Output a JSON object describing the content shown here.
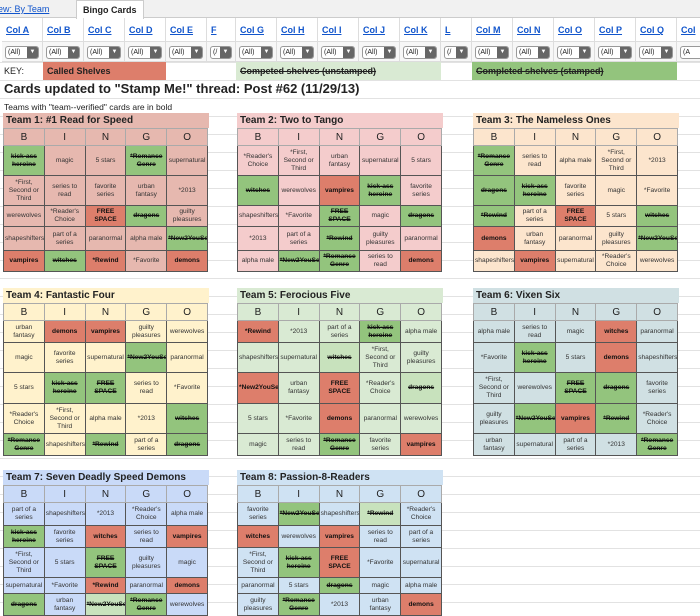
{
  "tabs": {
    "view_by_team": "ew: By Team",
    "bingo_cards": "Bingo Cards"
  },
  "columns": [
    "Col A",
    "Col B",
    "Col C",
    "Col D",
    "Col E",
    "F",
    "Col G",
    "Col H",
    "Col I",
    "Col J",
    "Col K",
    "L",
    "Col M",
    "Col N",
    "Col O",
    "Col P",
    "Col Q",
    "Col"
  ],
  "filters": [
    "(All)",
    "(All)",
    "(All)",
    "(All)",
    "(All)",
    "(/",
    "(All)",
    "(All)",
    "(All)",
    "(All)",
    "(All)",
    "(/",
    "(All)",
    "(All)",
    "(All)",
    "(All)",
    "(All)",
    "(A"
  ],
  "key": {
    "label": "KEY:",
    "called": "Called Shelves",
    "unstamped": "Competed shelves (unstamped)",
    "stamped": "Completed shelves (stamped)"
  },
  "colors": {
    "called": "#dd7e6b",
    "stamped": "#93c47d",
    "unstamped": "#d9ead3"
  },
  "title": "Cards updated to \"Stamp Me!\" thread: Post #62 (11/29/13)",
  "note": "Teams with \"team--verified\" cards are in bold",
  "bingo_letters": [
    "B",
    "I",
    "N",
    "G",
    "O"
  ],
  "teams": [
    {
      "title": "Team 1: #1 Read for Speed",
      "color": "#e6b8af",
      "rows": [
        [
          [
            "kick-ass heroine",
            "stamped"
          ],
          [
            "magic",
            ""
          ],
          [
            "5 stars",
            ""
          ],
          [
            "*Romance Genre",
            "stamped"
          ],
          [
            "supernatural",
            ""
          ]
        ],
        [
          [
            "*First, Second or Third",
            ""
          ],
          [
            "series to read",
            ""
          ],
          [
            "favorite series",
            ""
          ],
          [
            "urban fantasy",
            ""
          ],
          [
            "*2013",
            ""
          ]
        ],
        [
          [
            "werewolves",
            ""
          ],
          [
            "*Reader's Choice",
            ""
          ],
          [
            "FREE SPACE",
            "called"
          ],
          [
            "dragons",
            "stamped"
          ],
          [
            "guilty pleasures",
            ""
          ]
        ],
        [
          [
            "shapeshifters",
            ""
          ],
          [
            "part of a series",
            ""
          ],
          [
            "paranormal",
            ""
          ],
          [
            "alpha male",
            ""
          ],
          [
            "*New2YouSe",
            "stamped"
          ]
        ],
        [
          [
            "vampires",
            "called"
          ],
          [
            "witches",
            "stamped"
          ],
          [
            "*Rewind",
            "called"
          ],
          [
            "*Favorite",
            ""
          ],
          [
            "demons",
            "called"
          ]
        ]
      ]
    },
    {
      "title": "Team 2: Two to Tango",
      "color": "#f4cccc",
      "rows": [
        [
          [
            "*Reader's Choice",
            ""
          ],
          [
            "*First, Second or Third",
            ""
          ],
          [
            "urban fantasy",
            ""
          ],
          [
            "supernatural",
            ""
          ],
          [
            "5 stars",
            ""
          ]
        ],
        [
          [
            "witches",
            "stamped"
          ],
          [
            "werewolves",
            ""
          ],
          [
            "vampires",
            "called"
          ],
          [
            "kick-ass heroine",
            "stamped"
          ],
          [
            "favorite series",
            ""
          ]
        ],
        [
          [
            "shapeshifters",
            ""
          ],
          [
            "*Favorite",
            ""
          ],
          [
            "FREE SPACE",
            "stamped"
          ],
          [
            "magic",
            ""
          ],
          [
            "dragons",
            "stamped"
          ]
        ],
        [
          [
            "*2013",
            ""
          ],
          [
            "part of a series",
            ""
          ],
          [
            "*Rewind",
            "stamped"
          ],
          [
            "guilty pleasures",
            ""
          ],
          [
            "paranormal",
            ""
          ]
        ],
        [
          [
            "alpha male",
            ""
          ],
          [
            "*New2YouSe",
            "stamped"
          ],
          [
            "*Romance Genre",
            "stamped"
          ],
          [
            "series to read",
            ""
          ],
          [
            "demons",
            "called"
          ]
        ]
      ]
    },
    {
      "title": "Team 3: The Nameless Ones",
      "color": "#fce5cd",
      "rows": [
        [
          [
            "*Romance Genre",
            "stamped"
          ],
          [
            "series to read",
            ""
          ],
          [
            "alpha male",
            ""
          ],
          [
            "*First, Second or Third",
            ""
          ],
          [
            "*2013",
            ""
          ]
        ],
        [
          [
            "dragons",
            "stamped"
          ],
          [
            "kick-ass heroine",
            "stamped"
          ],
          [
            "favorite series",
            ""
          ],
          [
            "magic",
            ""
          ],
          [
            "*Favorite",
            ""
          ]
        ],
        [
          [
            "*Rewind",
            "stamped"
          ],
          [
            "part of a series",
            ""
          ],
          [
            "FREE SPACE",
            "called"
          ],
          [
            "5 stars",
            ""
          ],
          [
            "witches",
            "stamped"
          ]
        ],
        [
          [
            "demons",
            "called"
          ],
          [
            "urban fantasy",
            ""
          ],
          [
            "paranormal",
            ""
          ],
          [
            "guilty pleasures",
            ""
          ],
          [
            "*New2YouSe",
            "stamped"
          ]
        ],
        [
          [
            "shapeshifters",
            ""
          ],
          [
            "vampires",
            "called"
          ],
          [
            "supernatural",
            ""
          ],
          [
            "*Reader's Choice",
            ""
          ],
          [
            "werewolves",
            ""
          ]
        ]
      ]
    },
    {
      "title": "Team 4: Fantastic Four",
      "color": "#fff2cc",
      "rows": [
        [
          [
            "urban fantasy",
            ""
          ],
          [
            "demons",
            "called"
          ],
          [
            "vampires",
            "called"
          ],
          [
            "guilty pleasures",
            ""
          ],
          [
            "werewolves",
            ""
          ]
        ],
        [
          [
            "magic",
            ""
          ],
          [
            "favorite series",
            ""
          ],
          [
            "supernatural",
            ""
          ],
          [
            "*New2YouSe",
            "stamped"
          ],
          [
            "paranormal",
            ""
          ]
        ],
        [
          [
            "5 stars",
            ""
          ],
          [
            "kick-ass heroine",
            "stamped"
          ],
          [
            "FREE SPACE",
            "stamped"
          ],
          [
            "series to read",
            ""
          ],
          [
            "*Favorite",
            ""
          ]
        ],
        [
          [
            "*Reader's Choice",
            ""
          ],
          [
            "*First, Second or Third",
            ""
          ],
          [
            "alpha male",
            ""
          ],
          [
            "*2013",
            ""
          ],
          [
            "witches",
            "stamped"
          ]
        ],
        [
          [
            "*Romance Genre",
            "stamped"
          ],
          [
            "shapeshifters",
            ""
          ],
          [
            "*Rewind",
            "stamped"
          ],
          [
            "part of a series",
            ""
          ],
          [
            "dragons",
            "stamped"
          ]
        ]
      ]
    },
    {
      "title": "Team 5: Ferocious Five",
      "color": "#d9ead3",
      "rows": [
        [
          [
            "*Rewind",
            "called"
          ],
          [
            "*2013",
            ""
          ],
          [
            "part of a series",
            ""
          ],
          [
            "kick-ass heroine",
            "stamped"
          ],
          [
            "alpha male",
            ""
          ]
        ],
        [
          [
            "shapeshifters",
            ""
          ],
          [
            "supernatural",
            ""
          ],
          [
            "witches",
            "unstamped"
          ],
          [
            "*First, Second or Third",
            ""
          ],
          [
            "guilty pleasures",
            ""
          ]
        ],
        [
          [
            "*New2YouSe",
            "called"
          ],
          [
            "urban fantasy",
            ""
          ],
          [
            "FREE SPACE",
            "called"
          ],
          [
            "*Reader's Choice",
            ""
          ],
          [
            "dragons",
            "unstamped"
          ]
        ],
        [
          [
            "5 stars",
            ""
          ],
          [
            "*Favorite",
            ""
          ],
          [
            "demons",
            "called"
          ],
          [
            "paranormal",
            ""
          ],
          [
            "werewolves",
            ""
          ]
        ],
        [
          [
            "magic",
            ""
          ],
          [
            "series to read",
            ""
          ],
          [
            "*Romance Genre",
            "stamped"
          ],
          [
            "favorite series",
            ""
          ],
          [
            "vampires",
            "called"
          ]
        ]
      ]
    },
    {
      "title": "Team 6: Vixen Six",
      "color": "#d0e0e3",
      "rows": [
        [
          [
            "alpha male",
            ""
          ],
          [
            "series to read",
            ""
          ],
          [
            "magic",
            ""
          ],
          [
            "witches",
            "called"
          ],
          [
            "paranormal",
            ""
          ]
        ],
        [
          [
            "*Favorite",
            ""
          ],
          [
            "kick-ass heroine",
            "stamped"
          ],
          [
            "5 stars",
            ""
          ],
          [
            "demons",
            "called"
          ],
          [
            "shapeshifters",
            ""
          ]
        ],
        [
          [
            "*First, Second or Third",
            ""
          ],
          [
            "werewolves",
            ""
          ],
          [
            "FREE SPACE",
            "stamped"
          ],
          [
            "dragons",
            "stamped"
          ],
          [
            "favorite series",
            ""
          ]
        ],
        [
          [
            "guilty pleasures",
            ""
          ],
          [
            "*New2YouSe",
            "stamped"
          ],
          [
            "vampires",
            "called"
          ],
          [
            "*Rewind",
            "stamped"
          ],
          [
            "*Reader's Choice",
            ""
          ]
        ],
        [
          [
            "urban fantasy",
            ""
          ],
          [
            "supernatural",
            ""
          ],
          [
            "part of a series",
            ""
          ],
          [
            "*2013",
            ""
          ],
          [
            "*Romance Genre",
            "stamped"
          ]
        ]
      ]
    },
    {
      "title": "Team 7: Seven Deadly Speed Demons",
      "color": "#c9daf8",
      "rows": [
        [
          [
            "part of a series",
            ""
          ],
          [
            "shapeshifters",
            ""
          ],
          [
            "*2013",
            ""
          ],
          [
            "*Reader's Choice",
            ""
          ],
          [
            "alpha male",
            ""
          ]
        ],
        [
          [
            "kick-ass heroine",
            "stamped"
          ],
          [
            "favorite series",
            ""
          ],
          [
            "witches",
            "called"
          ],
          [
            "series to read",
            ""
          ],
          [
            "vampires",
            "called"
          ]
        ],
        [
          [
            "*First, Second or Third",
            ""
          ],
          [
            "5 stars",
            ""
          ],
          [
            "FREE SPACE",
            "stamped"
          ],
          [
            "guilty pleasures",
            ""
          ],
          [
            "magic",
            ""
          ]
        ],
        [
          [
            "supernatural",
            ""
          ],
          [
            "*Favorite",
            ""
          ],
          [
            "*Rewind",
            "called"
          ],
          [
            "paranormal",
            ""
          ],
          [
            "demons",
            "called"
          ]
        ],
        [
          [
            "dragons",
            "stamped"
          ],
          [
            "urban fantasy",
            ""
          ],
          [
            "*New2YouSe",
            "unstamped"
          ],
          [
            "*Romance Genre",
            "stamped"
          ],
          [
            "werewolves",
            ""
          ]
        ]
      ]
    },
    {
      "title": "Team 8: Passion-8-Readers",
      "color": "#cfe2f3",
      "rows": [
        [
          [
            "favorite series",
            ""
          ],
          [
            "*New2YouSe",
            "stamped"
          ],
          [
            "shapeshifters",
            ""
          ],
          [
            "*Rewind",
            "unstamped"
          ],
          [
            "*Reader's Choice",
            ""
          ]
        ],
        [
          [
            "witches",
            "called"
          ],
          [
            "werewolves",
            ""
          ],
          [
            "vampires",
            "called"
          ],
          [
            "series to read",
            ""
          ],
          [
            "part of a series",
            ""
          ]
        ],
        [
          [
            "*First, Second or Third",
            ""
          ],
          [
            "kick-ass heroine",
            "stamped"
          ],
          [
            "FREE SPACE",
            "called"
          ],
          [
            "*Favorite",
            ""
          ],
          [
            "supernatural",
            ""
          ]
        ],
        [
          [
            "paranormal",
            ""
          ],
          [
            "5 stars",
            ""
          ],
          [
            "dragons",
            "stamped"
          ],
          [
            "magic",
            ""
          ],
          [
            "alpha male",
            ""
          ]
        ],
        [
          [
            "guilty pleasures",
            ""
          ],
          [
            "*Romance Genre",
            "stamped"
          ],
          [
            "*2013",
            ""
          ],
          [
            "urban fantasy",
            ""
          ],
          [
            "demons",
            "called"
          ]
        ]
      ]
    }
  ]
}
